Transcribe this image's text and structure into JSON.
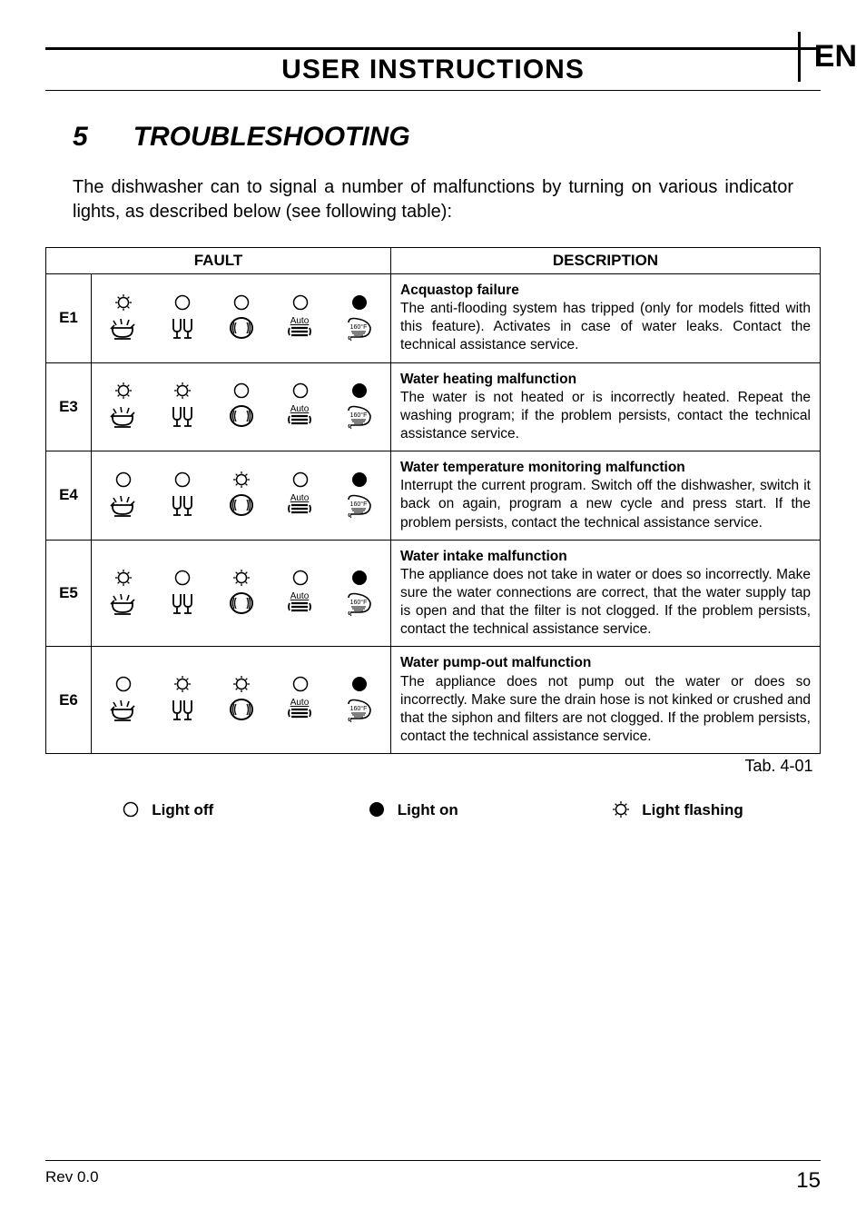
{
  "header": {
    "title": "USER INSTRUCTIONS",
    "lang": "EN"
  },
  "section": {
    "number": "5",
    "title": "TROUBLESHOOTING"
  },
  "intro": "The dishwasher can to signal a number of malfunctions by turning on various indicator lights, as described below (see following table):",
  "table": {
    "headers": {
      "fault": "FAULT",
      "desc": "DESCRIPTION"
    },
    "programIcons": {
      "auto_label": "Auto",
      "temp_label": "160°F"
    },
    "rows": [
      {
        "code": "E1",
        "states": [
          "flash",
          "off",
          "off",
          "off",
          "on"
        ],
        "title": "Acquastop failure",
        "body": "The anti-flooding system has tripped (only for models fitted with this feature). Activates in case of water leaks. Contact the technical assistance service."
      },
      {
        "code": "E3",
        "states": [
          "flash",
          "flash",
          "off",
          "off",
          "on"
        ],
        "title": "Water heating malfunction",
        "body": "The water is not heated or is incorrectly heated. Repeat the washing program; if the problem persists, contact the technical assistance service."
      },
      {
        "code": "E4",
        "states": [
          "off",
          "off",
          "flash",
          "off",
          "on"
        ],
        "title": "Water temperature monitoring malfunction",
        "body": "Interrupt the current program. Switch off the dishwasher, switch it back on again, program a new cycle and press start. If the problem persists, contact the technical assistance service."
      },
      {
        "code": "E5",
        "states": [
          "flash",
          "off",
          "flash",
          "off",
          "on"
        ],
        "title": "Water intake malfunction",
        "body": "The appliance does not take in water or does so incorrectly. Make sure the water connections are correct, that the water supply tap is open and that the filter is not clogged. If the problem persists, contact the technical assistance service."
      },
      {
        "code": "E6",
        "states": [
          "off",
          "flash",
          "flash",
          "off",
          "on"
        ],
        "title": "Water pump-out malfunction",
        "body": "The appliance does not pump out the water or does so incorrectly. Make sure the drain hose is not kinked or crushed and that the siphon and filters are not clogged. If the problem persists, contact the technical assistance service."
      }
    ],
    "caption": "Tab. 4-01"
  },
  "legend": {
    "off": "Light off",
    "on": "Light on",
    "flash": "Light flashing"
  },
  "footer": {
    "rev": "Rev 0.0",
    "page": "15"
  },
  "styling": {
    "text_color": "#000000",
    "background": "#ffffff",
    "border_width": 1.5,
    "icon_size": 30,
    "state_size": 18
  }
}
